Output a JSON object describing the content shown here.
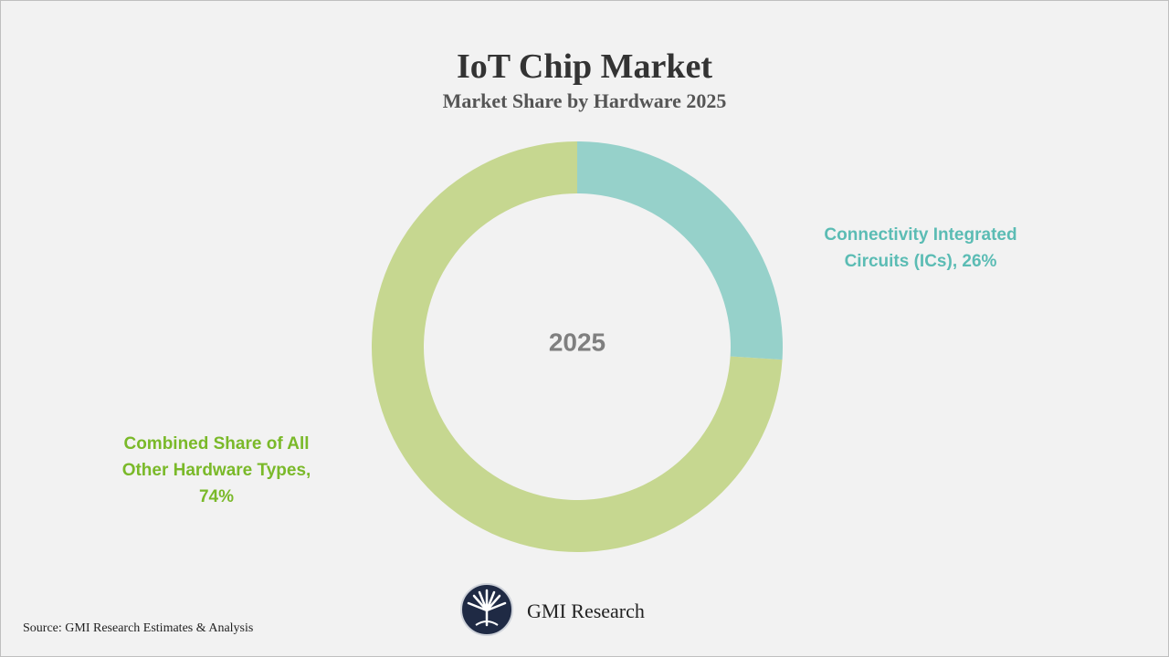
{
  "chart_data": {
    "type": "donut",
    "title": "IoT Chip Market",
    "subtitle": "Market Share by Hardware 2025",
    "center_label": "2025",
    "values": [
      26,
      74
    ],
    "value_labels": [
      "Connectivity Integrated Circuits (ICs), 26%",
      "Combined Share of All Other Hardware Types, 74%"
    ],
    "colors": [
      "#96d1ca",
      "#c6d790"
    ],
    "label_colors": [
      "#5bbcb4",
      "#7ab929"
    ],
    "source": "Source: GMI Research Estimates & Analysis",
    "brand": "GMI Research"
  }
}
